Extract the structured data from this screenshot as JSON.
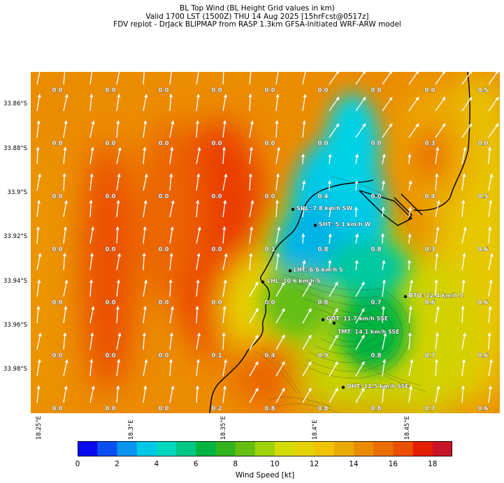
{
  "titles": {
    "line1": "BL Top Wind (BL Height Grid values in km)",
    "line2": "Valid 1700 LST (1500Z) THU 14 Aug 2025 [15hrFcst@0517z]",
    "line3": "FDV replot - DrJack BLIPMAP from RASP 1.3km GFSA-Initiated WRF-ARW model"
  },
  "y_axis_labels": [
    "33.86°S",
    "33.88°S",
    "33.9°S",
    "33.92°S",
    "33.94°S",
    "33.96°S",
    "33.98°S"
  ],
  "x_axis_labels": [
    "18.25°E",
    "18.3°E",
    "18.35°E",
    "18.4°E",
    "18.45°E"
  ],
  "grid_values": [
    [
      "0.0",
      "0.0",
      "0.0",
      "0.0",
      "0.0",
      "0.0",
      "0.0",
      "0.0",
      "0.5"
    ],
    [
      "0.0",
      "0.0",
      "0.0",
      "0.0",
      "0.0",
      "0.0",
      "0.0",
      "0.3",
      "0.0"
    ],
    [
      "0.0",
      "0.0",
      "0.0",
      "0.0",
      "0.0",
      "0.4",
      "0.0",
      "0.4",
      "0.5"
    ],
    [
      "0.0",
      "0.0",
      "0.0",
      "0.0",
      "0.1",
      "0.8",
      "0.8",
      "0.3",
      "0.6"
    ],
    [
      "0.0",
      "0.0",
      "0.0",
      "0.0",
      "0.0",
      "0.8",
      "0.7",
      "0.6",
      "0.6"
    ],
    [
      "0.0",
      "0.0",
      "0.0",
      "0.1",
      "0.4",
      "0.9",
      "0.8",
      "0.7",
      "0.6"
    ],
    [
      "0.0",
      "0.0",
      "0.0",
      "0.2",
      "0.8",
      "0.8",
      "0.8",
      "0.7",
      "0.6"
    ]
  ],
  "stations": [
    {
      "label": "SHL: 7.8 km/h SW"
    },
    {
      "label": "SHT: 5.1 km/h W"
    },
    {
      "label": "LHT: 6.6 km/h S"
    },
    {
      "label": "LHL: 10.6 km/h S"
    },
    {
      "label": "BTO: 22.4 km/h S"
    },
    {
      "label": "GUT: 11.7 km/h SSE"
    },
    {
      "label": "TMT: 14.1 km/h SSE"
    },
    {
      "label": "OHT: 11.5 km/h SSE"
    }
  ],
  "colorbar": {
    "title": "Wind Speed [kt]",
    "ticks": [
      "0",
      "2",
      "4",
      "6",
      "8",
      "10",
      "12",
      "14",
      "16",
      "18"
    ],
    "min": 0,
    "max": 19,
    "colors": [
      "#0a0aef",
      "#0a4ff0",
      "#0994ef",
      "#00c8e6",
      "#00d7c0",
      "#00c884",
      "#00b441",
      "#32b41e",
      "#64be14",
      "#a0d20a",
      "#d2dc00",
      "#e6d200",
      "#f0c300",
      "#ebaa00",
      "#eb8c00",
      "#eb6e00",
      "#eb5000",
      "#e61e00",
      "#c81428"
    ]
  },
  "wind_arrow_color": "#ffffff",
  "coastline_color": "#000000"
}
